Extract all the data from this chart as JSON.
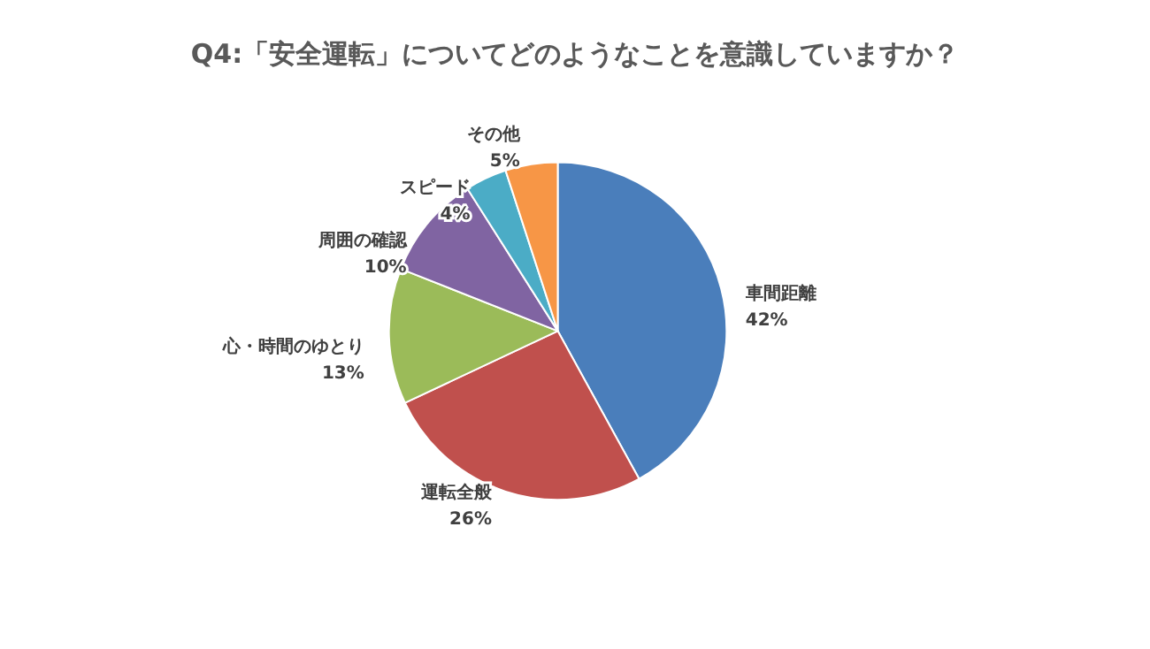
{
  "chart_data": {
    "type": "pie",
    "title": "Q4:「安全運転」についてどのようなことを意識していますか？",
    "categories": [
      "車間距離",
      "運転全般",
      "心・時間のゆとり",
      "周囲の確認",
      "スピード",
      "その他"
    ],
    "values": [
      42,
      26,
      13,
      10,
      4,
      5
    ],
    "colors": [
      "#4a7ebb",
      "#c0504d",
      "#9bbb59",
      "#8064a2",
      "#4bacc6",
      "#f79646"
    ],
    "value_labels": [
      "42%",
      "26%",
      "13%",
      "10%",
      "4%",
      "5%"
    ],
    "legend": false
  }
}
